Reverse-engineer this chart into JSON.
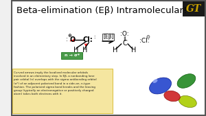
{
  "title": "Beta-elimination (Eβ) Intramolecular!",
  "title_fontsize": 10,
  "bg_color": "#f0f0f0",
  "slide_bg": "#ffffff",
  "reaction_label": "[Eβ]",
  "n_sigma_label": "n → σ*",
  "n_sigma_bg": "#4a9a4a",
  "caption": "Curved arrows imply the localized molecular orbitals\ninvolved in an elementary step. In Eβ, a nonbonding lone\npair orbital (n) overlaps with the sigma antibonding orbital\n(σ*) of an adjacent polarized bond in a side-on, n-type\nfashion. The polarized sigma bond breaks and the leaving\ngroup (typically an electronegative or positively charged\natom) takes both electrons with it.",
  "caption_bg": "#f5e6a0",
  "gt_color_gold": "#c8a000",
  "gt_color_white": "#ffffff",
  "border_color": "#333333",
  "slide_border": "#555555"
}
